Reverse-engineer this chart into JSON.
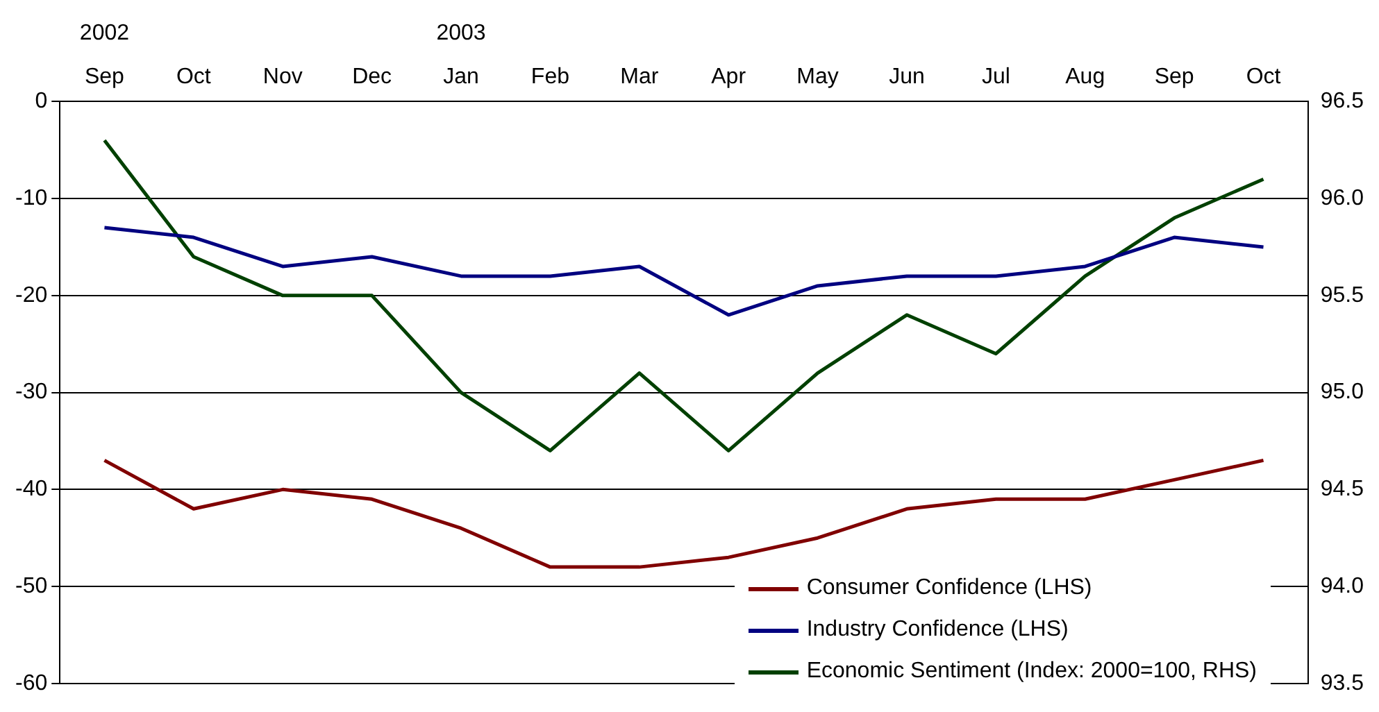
{
  "chart_data": {
    "type": "line",
    "categories": [
      "Sep",
      "Oct",
      "Nov",
      "Dec",
      "Jan",
      "Feb",
      "Mar",
      "Apr",
      "May",
      "Jun",
      "Jul",
      "Aug",
      "Sep",
      "Oct"
    ],
    "series": [
      {
        "name": "Consumer Confidence (LHS)",
        "color": "#800000",
        "values": [
          -37,
          -42,
          -40,
          -41,
          -44,
          -48,
          -48,
          -47,
          -45,
          -42,
          -41,
          -41,
          -39,
          -37
        ]
      },
      {
        "name": "Industry Confidence (LHS)",
        "color": "#000080",
        "values": [
          -13,
          -14,
          -17,
          -16,
          -18,
          -18,
          -17,
          -22,
          -19,
          -18,
          -18,
          -17,
          -14,
          -15
        ]
      },
      {
        "name": "Economic Sentiment (Index: 2000=100, RHS)",
        "color": "#004000",
        "axis": "y2",
        "values": [
          96.3,
          95.7,
          95.5,
          95.5,
          95.0,
          94.7,
          95.1,
          94.7,
          95.1,
          95.4,
          95.2,
          95.6,
          95.9,
          96.1
        ]
      }
    ],
    "ylim": [
      -60,
      0
    ],
    "yticks": [
      -60,
      -50,
      -40,
      -30,
      -20,
      -10,
      0
    ],
    "y2lim": [
      93.5,
      96.5
    ],
    "y2ticks": [
      93.5,
      {
        "value": 94,
        "label": "94.0"
      },
      94.5,
      {
        "value": 95,
        "label": "95.0"
      },
      95.5,
      {
        "value": 96,
        "label": "96.0"
      },
      96.5
    ],
    "annotations": [
      "2002",
      "2003"
    ],
    "grid": "y",
    "legend": "bottom right",
    "marker": "none",
    "line_style": "solid"
  }
}
